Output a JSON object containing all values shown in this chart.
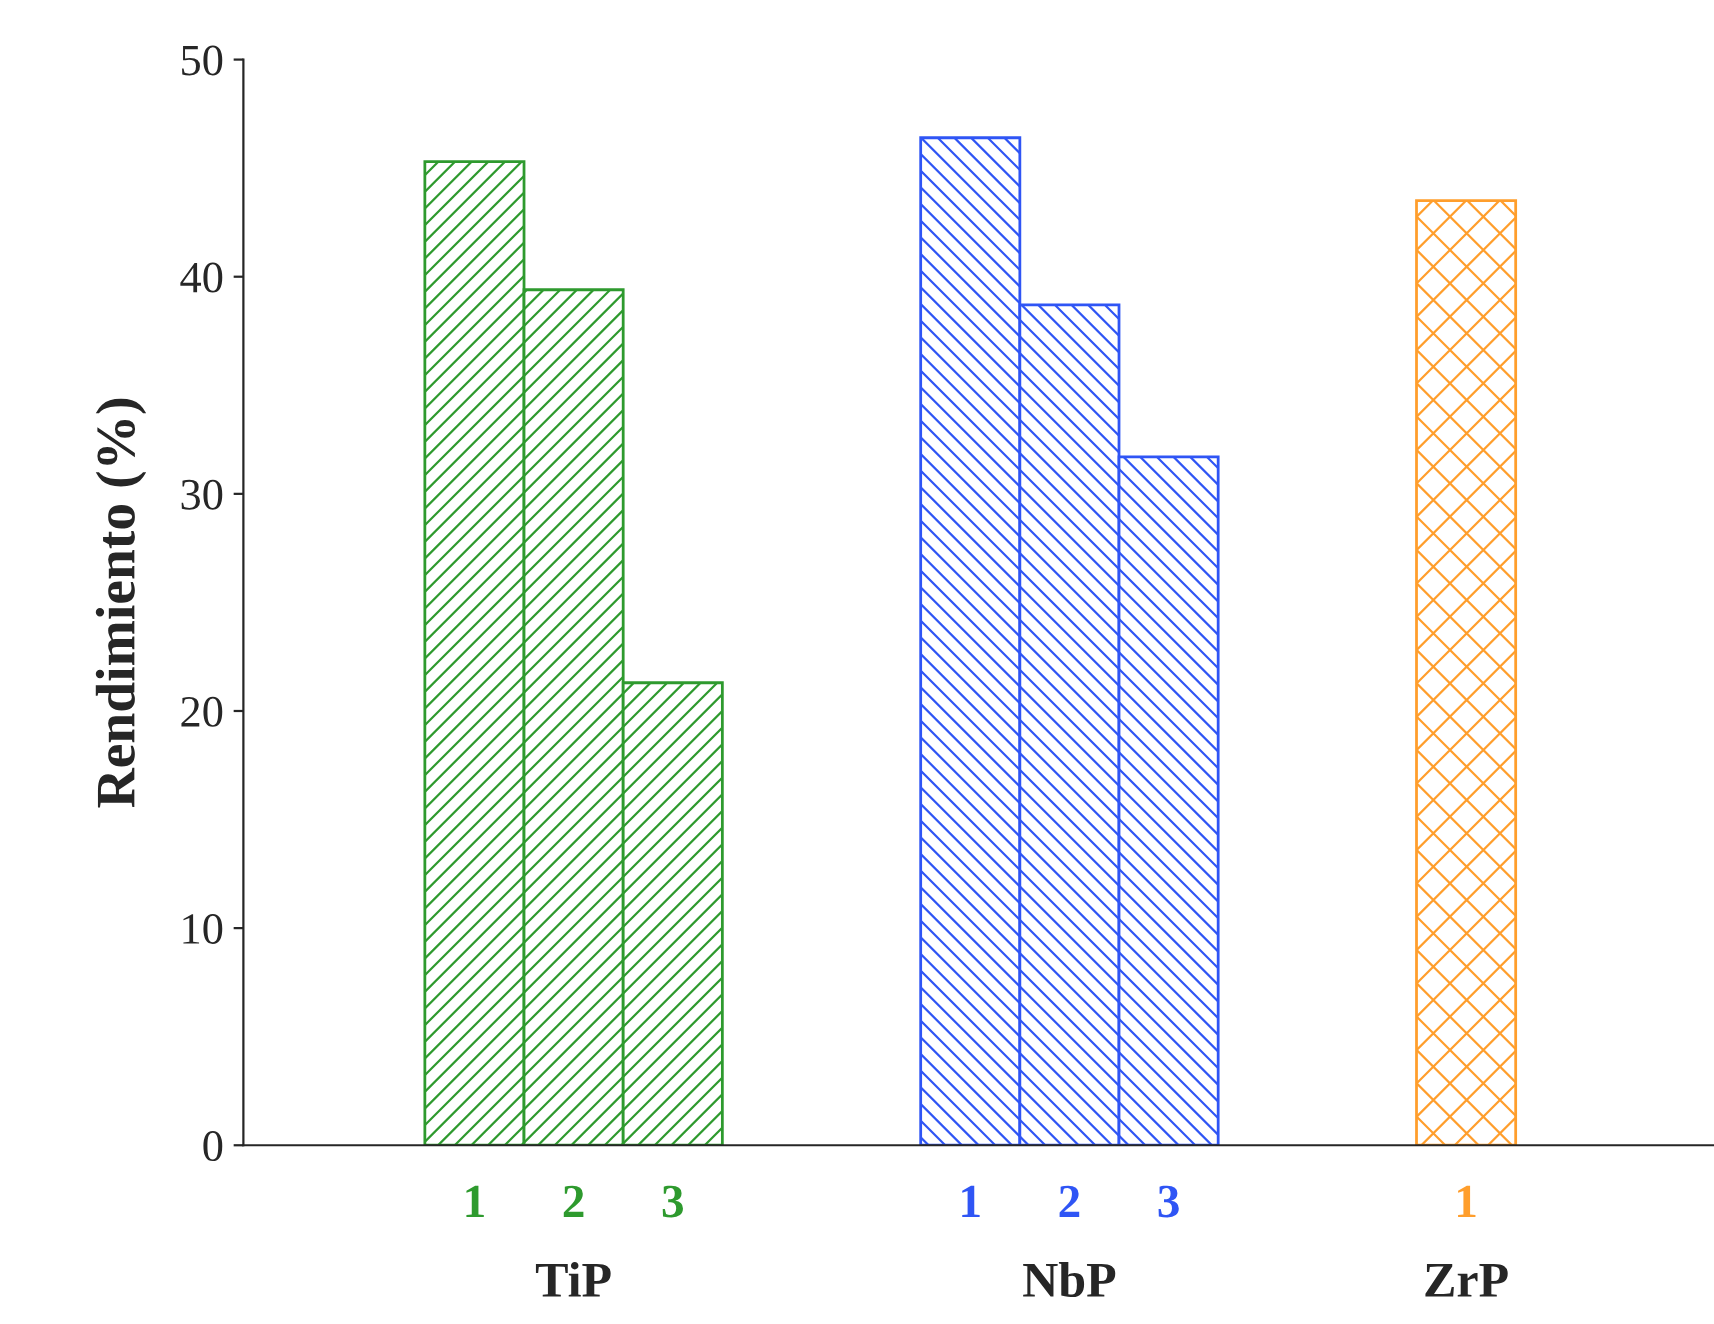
{
  "chart_data": {
    "type": "bar",
    "ylabel": "Rendimiento (%)",
    "categories": [
      null,
      null,
      "1",
      "2",
      "3",
      null,
      null,
      "1",
      "2",
      "3",
      null,
      null,
      "1",
      null,
      null
    ],
    "series": [
      {
        "color": "#2e9a2e",
        "values": [
          null,
          null,
          45.3,
          39.4,
          21.3,
          null,
          null,
          null,
          null,
          null,
          null,
          null,
          null,
          null,
          null
        ]
      },
      {
        "color": "#2f55f5",
        "values": [
          null,
          null,
          null,
          null,
          null,
          null,
          null,
          46.4,
          38.7,
          31.7,
          null,
          null,
          null,
          null,
          null
        ]
      },
      {
        "color": "#ff9e2c",
        "values": [
          null,
          null,
          null,
          null,
          null,
          null,
          null,
          null,
          null,
          null,
          null,
          null,
          43.5,
          null,
          null
        ]
      }
    ],
    "annotations": [
      "TiP",
      "NbP",
      "ZrP"
    ],
    "ylim": [
      0,
      50
    ],
    "yticks": [
      0,
      10,
      20,
      30,
      40,
      50
    ],
    "grid": false,
    "legend": false
  }
}
